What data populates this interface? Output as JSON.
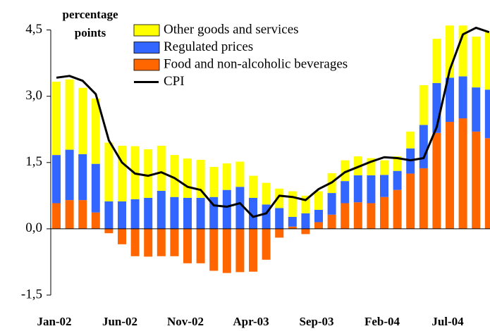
{
  "chart_data": {
    "type": "bar",
    "stacked": true,
    "ylabel": "percentage points",
    "categories": [
      "Jan-02",
      null,
      null,
      null,
      null,
      "Jun-02",
      null,
      null,
      null,
      null,
      "Nov-02",
      null,
      null,
      null,
      null,
      "Apr-03",
      null,
      null,
      null,
      null,
      "Sep-03",
      null,
      null,
      null,
      null,
      "Feb-04",
      null,
      null,
      null,
      null,
      "Jul-04",
      null,
      null,
      null
    ],
    "series": [
      {
        "name": "Food and non-alcoholic beverages",
        "color": "#ff6600",
        "type": "bar",
        "values": [
          0.58,
          0.65,
          0.65,
          0.37,
          -0.1,
          -0.35,
          -0.62,
          -0.63,
          -0.62,
          -0.62,
          -0.78,
          -0.78,
          -0.95,
          -1.0,
          -0.98,
          -0.97,
          -0.7,
          -0.2,
          0.05,
          -0.12,
          0.15,
          0.32,
          0.58,
          0.6,
          0.58,
          0.72,
          0.88,
          1.25,
          1.37,
          2.17,
          2.42,
          2.5,
          2.2,
          2.05
        ]
      },
      {
        "name": "Regulated prices",
        "color": "#3366ff",
        "type": "bar",
        "values": [
          1.09,
          1.14,
          1.04,
          1.1,
          0.62,
          0.62,
          0.67,
          0.7,
          0.86,
          0.72,
          0.7,
          0.7,
          0.72,
          0.88,
          0.95,
          0.7,
          0.55,
          0.47,
          0.22,
          0.35,
          0.28,
          0.49,
          0.5,
          0.61,
          0.63,
          0.5,
          0.43,
          0.57,
          0.98,
          1.13,
          1.0,
          0.95,
          1.0,
          1.1
        ]
      },
      {
        "name": "Other goods and services",
        "color": "#ffff00",
        "type": "bar",
        "values": [
          1.66,
          1.59,
          1.5,
          1.48,
          1.33,
          1.26,
          1.2,
          1.1,
          1.02,
          0.95,
          0.89,
          0.86,
          0.68,
          0.6,
          0.57,
          0.5,
          0.49,
          0.44,
          0.58,
          0.4,
          0.42,
          0.45,
          0.47,
          0.43,
          0.39,
          0.33,
          0.33,
          0.38,
          0.9,
          1.0,
          1.18,
          1.15,
          1.15,
          1.3
        ]
      },
      {
        "name": "CPI",
        "color": "#000000",
        "type": "line",
        "values": [
          3.42,
          3.46,
          3.35,
          3.05,
          2.0,
          1.5,
          1.25,
          1.2,
          1.28,
          1.15,
          0.95,
          0.88,
          0.53,
          0.5,
          0.58,
          0.27,
          0.35,
          0.75,
          0.72,
          0.65,
          0.9,
          1.05,
          1.28,
          1.4,
          1.52,
          1.62,
          1.6,
          1.55,
          1.6,
          2.3,
          3.6,
          4.4,
          4.55,
          4.45
        ]
      }
    ],
    "ylim": [
      -1.5,
      4.7
    ],
    "yticks": [
      {
        "value": -1.5,
        "label": "-1,5"
      },
      {
        "value": 0,
        "label": "0,0"
      },
      {
        "value": 1.5,
        "label": "1,5"
      },
      {
        "value": 3,
        "label": "3,0"
      },
      {
        "value": 4.5,
        "label": "4,5"
      }
    ]
  }
}
